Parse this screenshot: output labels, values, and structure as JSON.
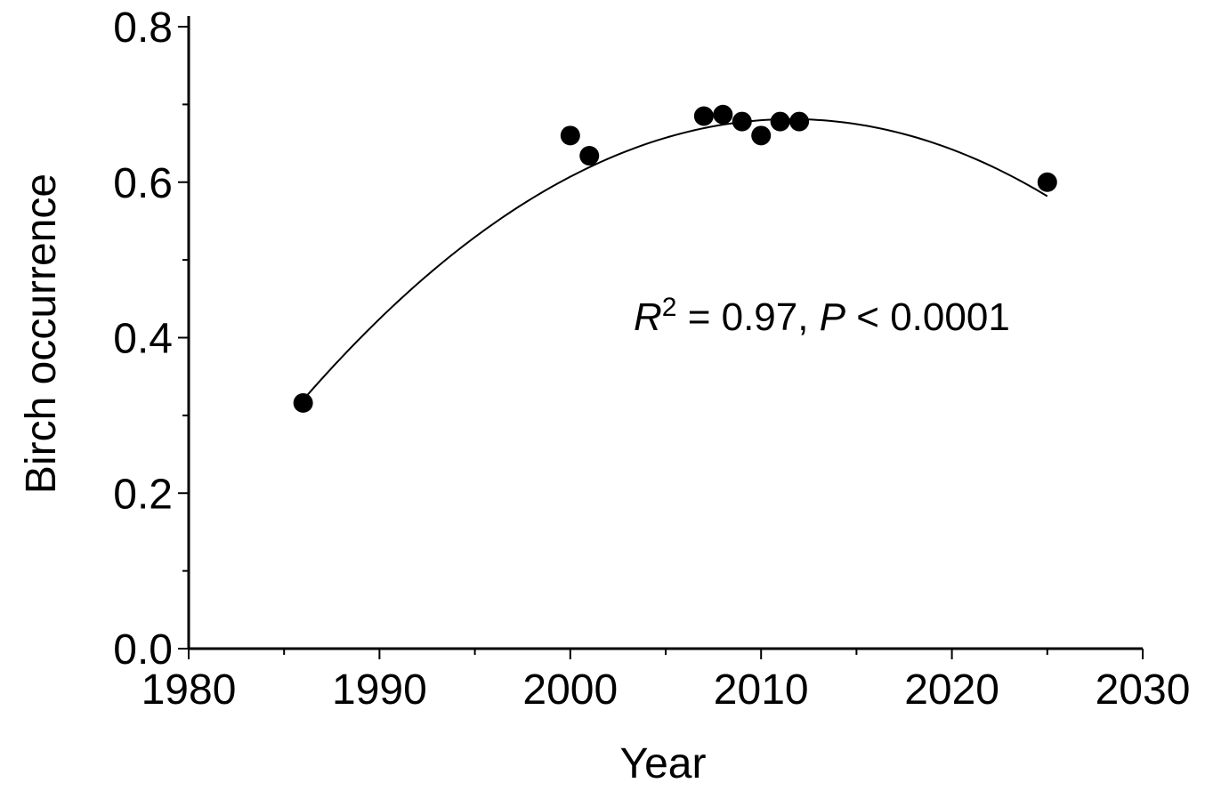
{
  "chart_data": {
    "type": "scatter",
    "xlabel": "Year",
    "ylabel": "Birch occurrence",
    "xlim": [
      1980,
      2030
    ],
    "ylim": [
      0,
      0.8
    ],
    "x_ticks": [
      1980,
      1990,
      2000,
      2010,
      2020,
      2030
    ],
    "x_tick_labels": [
      "1980",
      "1990",
      "2000",
      "2010",
      "2020",
      "2030"
    ],
    "y_ticks": [
      0,
      0.2,
      0.4,
      0.6,
      0.8
    ],
    "y_tick_labels": [
      "0.0",
      "0.2",
      "0.4",
      "0.6",
      "0.8"
    ],
    "grid": false,
    "points": [
      {
        "x": 1986,
        "y": 0.316
      },
      {
        "x": 2000,
        "y": 0.66
      },
      {
        "x": 2001,
        "y": 0.634
      },
      {
        "x": 2007,
        "y": 0.685
      },
      {
        "x": 2008,
        "y": 0.687
      },
      {
        "x": 2009,
        "y": 0.678
      },
      {
        "x": 2010,
        "y": 0.66
      },
      {
        "x": 2011,
        "y": 0.678
      },
      {
        "x": 2012,
        "y": 0.678
      },
      {
        "x": 2025,
        "y": 0.6
      }
    ],
    "fit": {
      "type": "quadratic",
      "x_range": [
        1986,
        2025
      ],
      "samples": [
        {
          "x": 1986,
          "y": 0.32
        },
        {
          "x": 2013,
          "y": 0.68
        },
        {
          "x": 2025,
          "y": 0.582
        }
      ]
    },
    "annotation": {
      "r_symbol": "R",
      "r_exponent": "2",
      "r_value": " = 0.97, ",
      "p_symbol": "P",
      "p_value": " < 0.0001"
    }
  }
}
